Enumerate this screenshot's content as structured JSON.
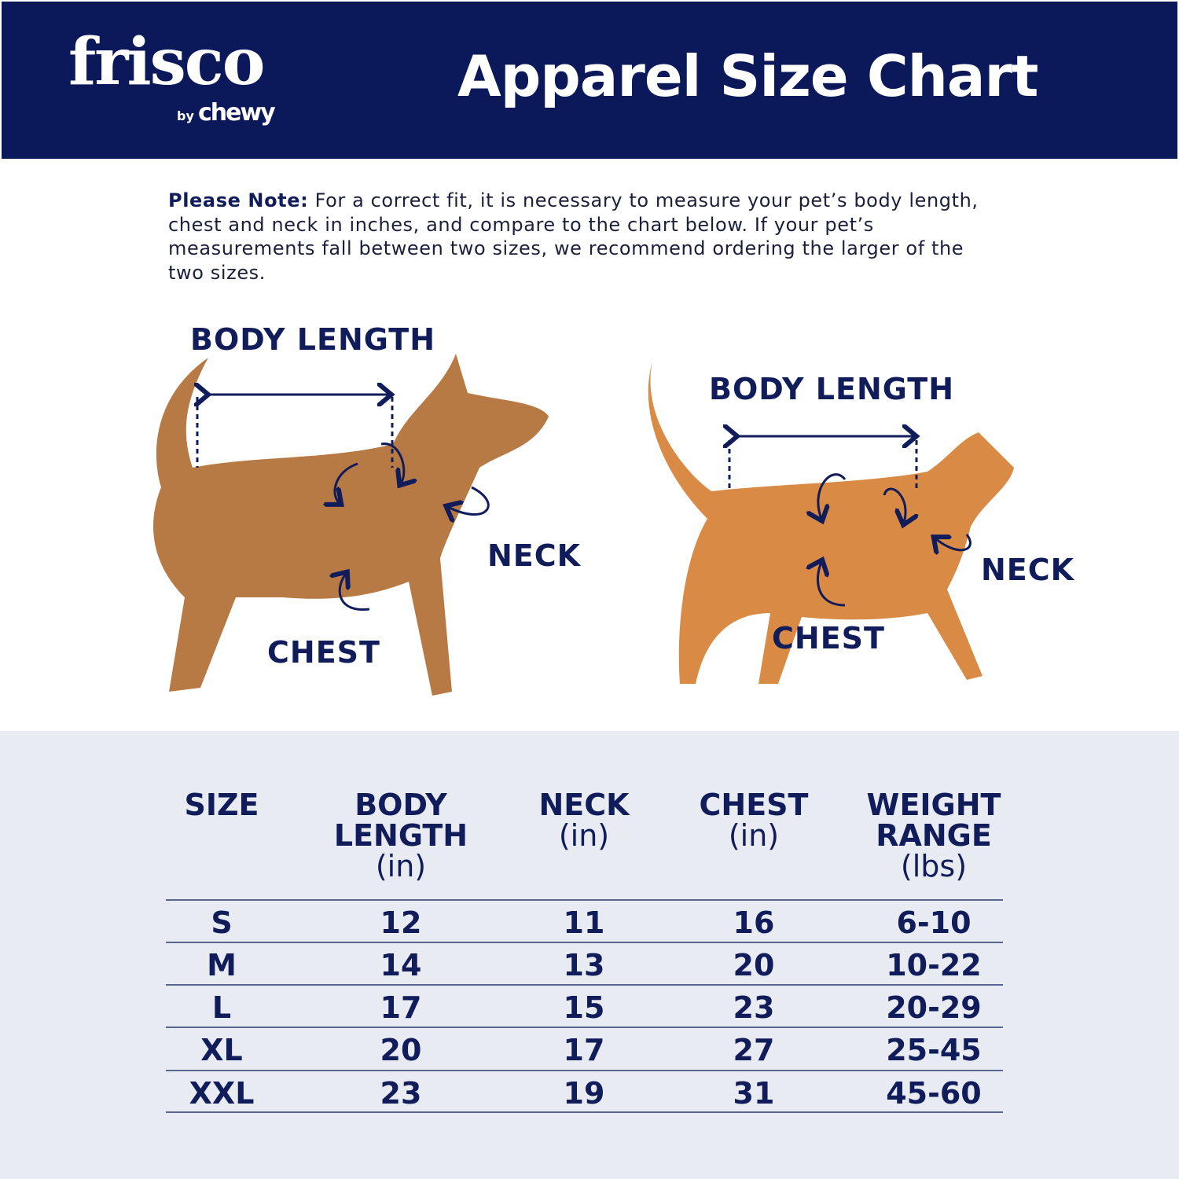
{
  "header": {
    "brand": "frisco",
    "brand_sub_by": "by",
    "brand_sub": "chewy",
    "title": "Apparel Size Chart",
    "color": "#0b195a"
  },
  "note": {
    "label": "Please Note:",
    "text": " For a correct fit, it is necessary to measure your pet’s body length, chest and neck in inches, and compare to the chart below. If your pet’s measurements fall between two sizes, we recommend ordering the larger of the two sizes."
  },
  "dog": {
    "body_length": "BODY LENGTH",
    "neck": "NECK",
    "chest": "CHEST"
  },
  "cat": {
    "body_length": "BODY LENGTH",
    "neck": "NECK",
    "chest": "CHEST"
  },
  "table": {
    "headers": [
      {
        "title": "SIZE",
        "unit": ""
      },
      {
        "title": "BODY LENGTH",
        "unit": "(in)"
      },
      {
        "title": "NECK",
        "unit": "(in)"
      },
      {
        "title": "CHEST",
        "unit": "(in)"
      },
      {
        "title": "WEIGHT RANGE",
        "unit": "(lbs)"
      }
    ],
    "rows": [
      [
        "S",
        "12",
        "11",
        "16",
        "6-10"
      ],
      [
        "M",
        "14",
        "13",
        "20",
        "10-22"
      ],
      [
        "L",
        "17",
        "15",
        "23",
        "20-29"
      ],
      [
        "XL",
        "20",
        "17",
        "27",
        "25-45"
      ],
      [
        "XXL",
        "23",
        "19",
        "31",
        "45-60"
      ]
    ]
  }
}
